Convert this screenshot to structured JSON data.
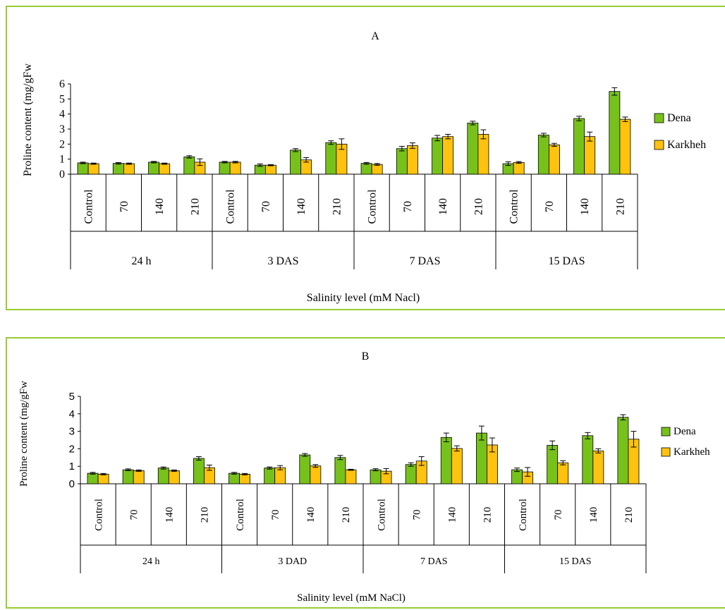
{
  "chart_data": [
    {
      "type": "bar",
      "title": "A",
      "xlabel": "Salinity level (mM Nacl)",
      "ylabel": "Proline content (mg/gFw",
      "ylim": [
        0,
        6
      ],
      "yticks": [
        "0",
        "1",
        "2",
        "3",
        "4",
        "5",
        "6"
      ],
      "groups": [
        "24 h",
        "3 DAS",
        "7 DAS",
        "15 DAS"
      ],
      "categories": [
        "Control",
        "70",
        "140",
        "210",
        "Control",
        "70",
        "140",
        "210",
        "Control",
        "70",
        "140",
        "210",
        "Control",
        "70",
        "140",
        "210"
      ],
      "series": [
        {
          "name": "Dena",
          "color": "#77c21a",
          "values": [
            0.75,
            0.72,
            0.8,
            1.15,
            0.8,
            0.6,
            1.6,
            2.1,
            0.72,
            1.7,
            2.4,
            3.4,
            0.7,
            2.6,
            3.7,
            5.5
          ],
          "errors": [
            0.05,
            0.05,
            0.05,
            0.08,
            0.05,
            0.08,
            0.1,
            0.12,
            0.06,
            0.15,
            0.18,
            0.12,
            0.12,
            0.12,
            0.15,
            0.25
          ]
        },
        {
          "name": "Karkheh",
          "color": "#ffc20e",
          "values": [
            0.7,
            0.7,
            0.7,
            0.8,
            0.8,
            0.6,
            0.95,
            2.0,
            0.65,
            1.9,
            2.5,
            2.65,
            0.78,
            1.95,
            2.5,
            3.65
          ],
          "errors": [
            0.04,
            0.04,
            0.04,
            0.22,
            0.05,
            0.04,
            0.15,
            0.35,
            0.06,
            0.18,
            0.15,
            0.3,
            0.06,
            0.1,
            0.3,
            0.15
          ]
        }
      ],
      "legend": "right"
    },
    {
      "type": "bar",
      "title": "B",
      "xlabel": "Salinity level (mM NaCl)",
      "ylabel": "Proline content (mg/gFw",
      "ylim": [
        0,
        5
      ],
      "yticks": [
        "0",
        "1",
        "2",
        "3",
        "4",
        "5"
      ],
      "groups": [
        "24 h",
        "3 DAD",
        "7 DAS",
        "15 DAS"
      ],
      "categories": [
        "Control",
        "70",
        "140",
        "210",
        "Control",
        "70",
        "140",
        "210",
        "Control",
        "70",
        "140",
        "210",
        "Control",
        "70",
        "140",
        "210"
      ],
      "series": [
        {
          "name": "Dena",
          "color": "#77c21a",
          "values": [
            0.6,
            0.8,
            0.9,
            1.45,
            0.6,
            0.9,
            1.65,
            1.5,
            0.8,
            1.1,
            2.65,
            2.9,
            0.8,
            2.2,
            2.75,
            3.8
          ],
          "errors": [
            0.05,
            0.05,
            0.06,
            0.1,
            0.05,
            0.06,
            0.08,
            0.12,
            0.06,
            0.1,
            0.25,
            0.4,
            0.1,
            0.25,
            0.18,
            0.15
          ]
        },
        {
          "name": "Karkheh",
          "color": "#ffc20e",
          "values": [
            0.55,
            0.75,
            0.75,
            0.92,
            0.55,
            0.92,
            1.02,
            0.8,
            0.72,
            1.3,
            2.02,
            2.22,
            0.68,
            1.2,
            1.88,
            2.55
          ],
          "errors": [
            0.04,
            0.04,
            0.04,
            0.15,
            0.04,
            0.12,
            0.08,
            0.03,
            0.15,
            0.25,
            0.15,
            0.4,
            0.25,
            0.12,
            0.12,
            0.45
          ]
        }
      ],
      "legend": "right"
    }
  ]
}
